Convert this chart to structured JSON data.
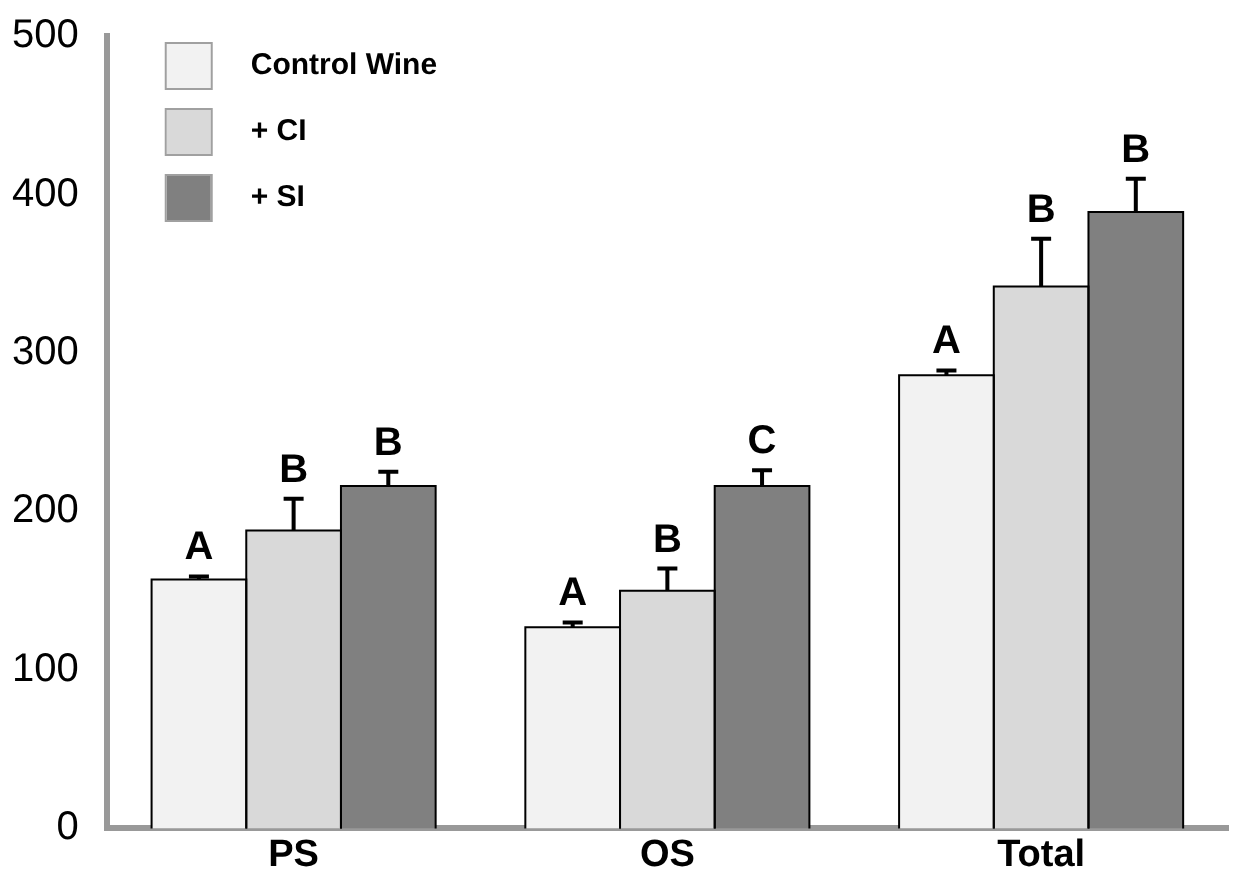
{
  "chart_data": {
    "type": "bar",
    "categories": [
      "PS",
      "OS",
      "Total"
    ],
    "series": [
      {
        "name": "Control Wine",
        "color": "#f2f2f2",
        "values": [
          157,
          127,
          286
        ],
        "errors": [
          [
            157,
            159
          ],
          [
            127,
            130
          ],
          [
            286,
            289
          ]
        ],
        "value_labels": [
          "A",
          "A",
          "A"
        ]
      },
      {
        "name": "+ CI",
        "color": "#d9d9d9",
        "values": [
          188,
          150,
          342
        ],
        "errors": [
          [
            188,
            208
          ],
          [
            150,
            164
          ],
          [
            342,
            372
          ]
        ],
        "value_labels": [
          "B",
          "B",
          "B"
        ]
      },
      {
        "name": "+ SI",
        "color": "#808080",
        "values": [
          216,
          216,
          389
        ],
        "errors": [
          [
            216,
            225
          ],
          [
            216,
            226
          ],
          [
            389,
            410
          ]
        ],
        "value_labels": [
          "B",
          "C",
          "B"
        ]
      }
    ],
    "ylim": [
      0,
      500
    ],
    "yticks": [
      0,
      100,
      200,
      300,
      400,
      500
    ],
    "grid": false,
    "legend": "top left"
  }
}
